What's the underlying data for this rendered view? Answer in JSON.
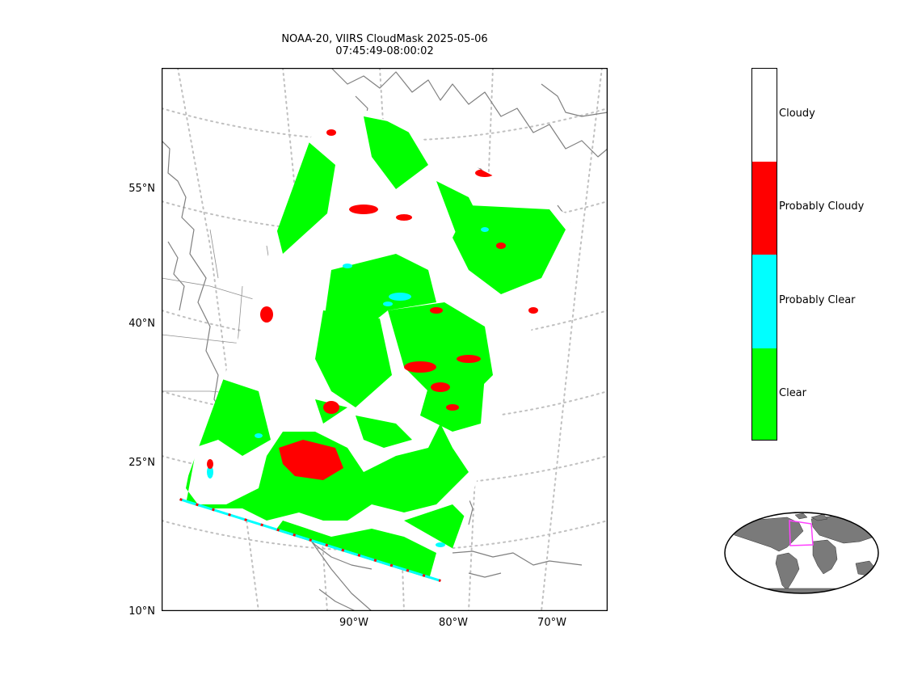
{
  "title_line1": "NOAA-20, VIIRS CloudMask 2025-05-06",
  "title_line2": "07:45:49-08:00:02",
  "lat_labels": [
    "55°N",
    "40°N",
    "25°N",
    "10°N"
  ],
  "lon_labels": [
    "90°W",
    "80°W",
    "70°W"
  ],
  "colorbar": {
    "categories": [
      {
        "label": "Cloudy",
        "color": "#ffffff"
      },
      {
        "label": "Probably Cloudy",
        "color": "#ff0000"
      },
      {
        "label": "Probably Clear",
        "color": "#00ffff"
      },
      {
        "label": "Clear",
        "color": "#00ff00"
      }
    ]
  },
  "colors": {
    "coastline": "#808080",
    "graticule": "#c0c0c0",
    "inset_land": "#7a7a7a",
    "inset_box": "#ff40ff"
  }
}
